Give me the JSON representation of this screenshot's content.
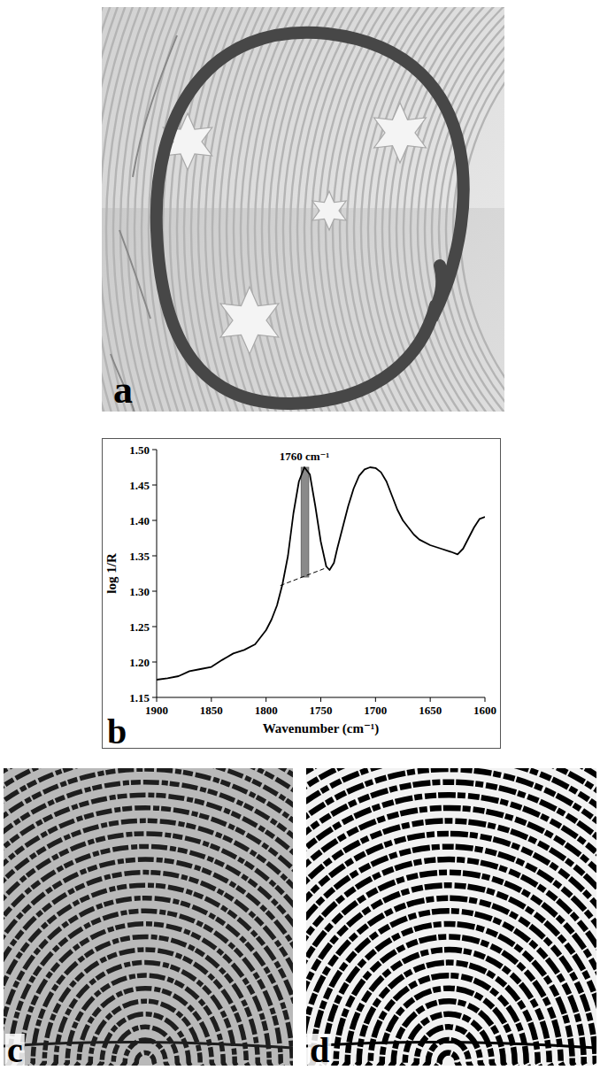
{
  "panel_labels": [
    "a",
    "b",
    "c",
    "d"
  ],
  "chart_data": {
    "type": "line",
    "x_label": "Wavenumber (cm⁻¹)",
    "y_label": "log 1/R",
    "xlim": [
      1900,
      1600
    ],
    "ylim": [
      1.15,
      1.5
    ],
    "xticks": [
      1900,
      1850,
      1800,
      1750,
      1700,
      1650,
      1600
    ],
    "yticks": [
      1.15,
      {
        "value": 1.2,
        "label": "1.20"
      },
      1.25,
      {
        "value": 1.3,
        "label": "1.30"
      },
      1.35,
      {
        "value": 1.4,
        "label": "1.40"
      },
      1.45,
      {
        "value": 1.5,
        "label": "1.50"
      }
    ],
    "color": "#000000",
    "x": [
      1900,
      1890,
      1880,
      1870,
      1860,
      1850,
      1840,
      1830,
      1820,
      1810,
      1800,
      1795,
      1790,
      1785,
      1780,
      1775,
      1770,
      1765,
      1760,
      1755,
      1750,
      1745,
      1742,
      1738,
      1735,
      1730,
      1725,
      1720,
      1715,
      1710,
      1705,
      1700,
      1695,
      1690,
      1685,
      1680,
      1675,
      1670,
      1665,
      1660,
      1650,
      1640,
      1630,
      1625,
      1620,
      1615,
      1610,
      1605,
      1600
    ],
    "values": [
      1.175,
      1.177,
      1.18,
      1.187,
      1.19,
      1.193,
      1.203,
      1.212,
      1.217,
      1.225,
      1.245,
      1.26,
      1.28,
      1.31,
      1.35,
      1.41,
      1.455,
      1.475,
      1.465,
      1.42,
      1.37,
      1.335,
      1.33,
      1.34,
      1.36,
      1.39,
      1.42,
      1.445,
      1.463,
      1.472,
      1.475,
      1.474,
      1.468,
      1.455,
      1.435,
      1.415,
      1.4,
      1.39,
      1.38,
      1.373,
      1.365,
      1.36,
      1.355,
      1.352,
      1.36,
      1.375,
      1.39,
      1.402,
      1.405
    ],
    "annotations": [
      {
        "text": "1760 cm⁻¹",
        "x": 1765,
        "y": 1.485
      }
    ],
    "baseline": {
      "x": [
        1787,
        1745
      ],
      "y": [
        1.308,
        1.333
      ]
    },
    "band": {
      "x": [
        1768,
        1761
      ],
      "y": [
        1.32,
        1.475
      ]
    }
  }
}
